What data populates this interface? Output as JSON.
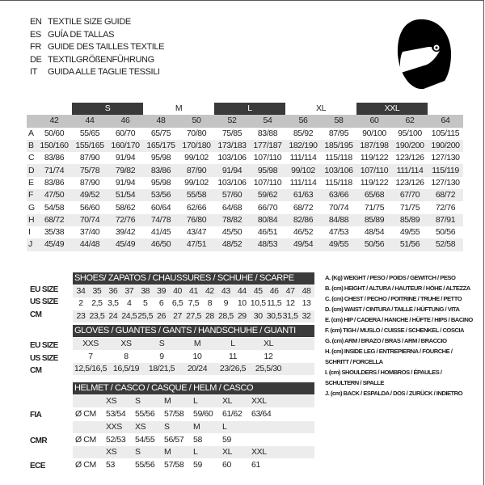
{
  "titles": [
    {
      "code": "EN",
      "text": "TEXTILE SIZE GUIDE"
    },
    {
      "code": "ES",
      "text": "GUÍA DE TALLAS"
    },
    {
      "code": "FR",
      "text": "GUIDE DES TAILLES TEXTILE"
    },
    {
      "code": "DE",
      "text": "TEXTILGRÖßENFÜHRUNG"
    },
    {
      "code": "IT",
      "text": "GUIDA ALLE TAGLIE TESSILI"
    }
  ],
  "textile": {
    "bands": [
      {
        "label": "",
        "span": 1,
        "dark": false
      },
      {
        "label": "S",
        "span": 2,
        "dark": true
      },
      {
        "label": "M",
        "span": 2,
        "dark": false
      },
      {
        "label": "L",
        "span": 2,
        "dark": true
      },
      {
        "label": "XL",
        "span": 2,
        "dark": false
      },
      {
        "label": "XXL",
        "span": 2,
        "dark": true
      },
      {
        "label": "",
        "span": 1,
        "dark": false
      }
    ],
    "sizes": [
      "42",
      "44",
      "46",
      "48",
      "50",
      "52",
      "54",
      "56",
      "58",
      "60",
      "62",
      "64"
    ],
    "rows": [
      {
        "label": "A",
        "values": [
          "50/60",
          "55/65",
          "60/70",
          "65/75",
          "70/80",
          "75/85",
          "83/88",
          "85/92",
          "87/95",
          "90/100",
          "95/100",
          "105/115"
        ]
      },
      {
        "label": "B",
        "values": [
          "150/160",
          "155/165",
          "160/170",
          "165/175",
          "170/180",
          "173/183",
          "177/187",
          "182/190",
          "185/195",
          "187/198",
          "190/200",
          "190/200"
        ]
      },
      {
        "label": "C",
        "values": [
          "83/86",
          "87/90",
          "91/94",
          "95/98",
          "99/102",
          "103/106",
          "107/110",
          "111/114",
          "115/118",
          "119/122",
          "123/126",
          "127/130"
        ]
      },
      {
        "label": "D",
        "values": [
          "71/74",
          "75/78",
          "79/82",
          "83/86",
          "87/90",
          "91/94",
          "95/98",
          "99/102",
          "103/106",
          "107/110",
          "111/114",
          "115/119"
        ]
      },
      {
        "label": "E",
        "values": [
          "83/86",
          "87/90",
          "91/94",
          "95/98",
          "99/102",
          "103/106",
          "107/110",
          "111/114",
          "115/118",
          "119/122",
          "123/126",
          "127/130"
        ]
      },
      {
        "label": "F",
        "values": [
          "47/50",
          "49/52",
          "51/54",
          "53/56",
          "55/58",
          "57/60",
          "59/62",
          "61/63",
          "63/66",
          "65/68",
          "67/70",
          "68/72"
        ]
      },
      {
        "label": "G",
        "values": [
          "54/58",
          "56/60",
          "58/62",
          "60/64",
          "62/66",
          "64/68",
          "66/70",
          "68/72",
          "70/74",
          "71/75",
          "71/75",
          "72/76"
        ]
      },
      {
        "label": "H",
        "values": [
          "68/72",
          "70/74",
          "72/76",
          "74/78",
          "76/80",
          "78/82",
          "80/84",
          "82/86",
          "84/88",
          "85/89",
          "85/89",
          "87/91"
        ]
      },
      {
        "label": "I",
        "values": [
          "35/38",
          "37/40",
          "39/42",
          "41/45",
          "43/47",
          "45/50",
          "46/51",
          "46/52",
          "47/53",
          "48/54",
          "49/55",
          "50/56"
        ]
      },
      {
        "label": "J",
        "values": [
          "45/49",
          "44/48",
          "45/49",
          "46/50",
          "47/51",
          "48/52",
          "48/53",
          "49/54",
          "49/55",
          "50/56",
          "51/56",
          "52/58"
        ]
      }
    ]
  },
  "shoes": {
    "title": "SHOES/ ZAPATOS / CHAUSSURES / SCHUHE / SCARPE",
    "rows": [
      {
        "label": "EU SIZE",
        "values": [
          "34",
          "35",
          "36",
          "37",
          "38",
          "39",
          "40",
          "41",
          "42",
          "43",
          "44",
          "45",
          "46",
          "47",
          "48"
        ]
      },
      {
        "label": "US SIZE",
        "values": [
          "2",
          "2,5",
          "3,5",
          "4",
          "5",
          "6",
          "6,5",
          "7,5",
          "8",
          "9",
          "10",
          "10,5",
          "11,5",
          "12",
          "13"
        ]
      },
      {
        "label": "CM",
        "values": [
          "23",
          "23,5",
          "24",
          "24,5",
          "25,5",
          "26",
          "27",
          "27,5",
          "28",
          "28,5",
          "29",
          "30",
          "30,5",
          "31,5",
          "32"
        ]
      }
    ]
  },
  "gloves": {
    "title": "GLOVES / GUANTES / GANTS / HANDSCHUHE / GUANTI",
    "rows": [
      {
        "label": "EU SIZE",
        "values": [
          "XXS",
          "XS",
          "S",
          "M",
          "L",
          "XL"
        ]
      },
      {
        "label": "US SIZE",
        "values": [
          "7",
          "8",
          "9",
          "10",
          "11",
          "12"
        ]
      },
      {
        "label": "CM",
        "values": [
          "12,5/16,5",
          "16,5/19",
          "18/21,5",
          "20/24",
          "23/26,5",
          "25,5/30"
        ]
      }
    ]
  },
  "helmet": {
    "title": "HELMET / CASCO / CASQUE / HELM / CASCO",
    "groups": [
      {
        "label": "FIA",
        "unit": "Ø CM",
        "sizes": [
          "XS",
          "S",
          "M",
          "L",
          "XL",
          "XXL"
        ],
        "values": [
          "53/54",
          "55/56",
          "57/58",
          "59/60",
          "61/62",
          "63/64"
        ]
      },
      {
        "label": "CMR",
        "unit": "Ø CM",
        "sizes": [
          "XXS",
          "XS",
          "S",
          "M",
          "L"
        ],
        "values": [
          "52/53",
          "54/55",
          "56/57",
          "58",
          "59"
        ]
      },
      {
        "label": "ECE",
        "unit": "Ø CM",
        "sizes": [
          "XS",
          "S",
          "M",
          "L",
          "XL",
          "XXL"
        ],
        "values": [
          "53",
          "55/56",
          "57/58",
          "59",
          "60",
          "61"
        ]
      }
    ]
  },
  "legend": [
    "A. (Kg) WEIGHT / PESO / POIDS / GEWITCH / PESO",
    "B. (cm) HEIGHT / ALTURA / HAUTEUR / HÖHE / ALTEZZA",
    "C. (cm) CHEST / PECHO / POITRINE / TRUHE / PETTO",
    "D. (cm) WAIST / CINTURA / TAILLE / HÜFTUNG / VITA",
    "E. (cm) HIP / CADERA / HANCHE / HÜFTE / HIPS /  BACINO",
    "F.  (cm) TIGH / MUSLO / CUISSE / SCHENKEL / COSCIA",
    "G. (cm) ARM  / BRAZO / BRAS / ARM / BRACCIO",
    "H. (cm) INSIDE LEG / ENTREPIERNA / FOURCHE /",
    "SCHRITT / FORCELLA",
    "I.  (cm) SHOULDERS / HOMBROS / ÉPAULES /",
    "SCHULTERN / SPALLE",
    "J. (cm) BACK / ESPALDA / DOS / ZURÜCK / INDIETRO"
  ],
  "colors": {
    "dark": "#3a3a3a",
    "mid": "#c4c4c4",
    "light": "#ececec"
  }
}
